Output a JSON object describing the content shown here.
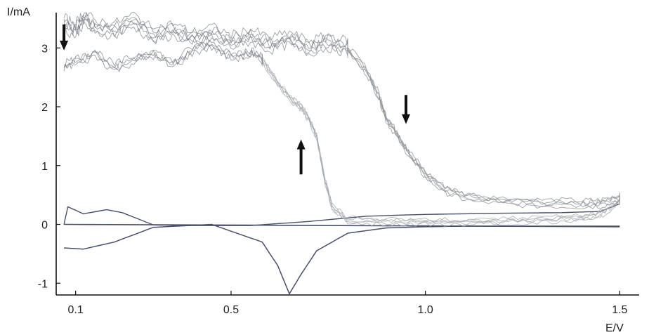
{
  "chart_data": {
    "type": "line",
    "title": "",
    "xlabel": "E/V",
    "ylabel": "I/mA",
    "xlim": [
      0.05,
      1.55
    ],
    "ylim": [
      -1.2,
      3.6
    ],
    "xticks": [
      {
        "value": 0.1,
        "label": "0.1"
      },
      {
        "value": 0.5,
        "label": "0.5"
      },
      {
        "value": 1.0,
        "label": "1.0"
      },
      {
        "value": 1.5,
        "label": "1.5"
      }
    ],
    "yticks": [
      {
        "value": -1,
        "label": "-1"
      },
      {
        "value": 0,
        "label": "0"
      },
      {
        "value": 1,
        "label": "1"
      },
      {
        "value": 2,
        "label": "2"
      },
      {
        "value": 3,
        "label": "3"
      }
    ],
    "grid": false,
    "legend": "none",
    "colors": {
      "axis": "#111111",
      "voltammogram": "#4a4f6a",
      "forward": "#8a8f94",
      "reverse": "#a3a8ad",
      "noisy": "#7b8088",
      "arrow": "#111111"
    },
    "series": [
      {
        "x": [
          0.07,
          0.12,
          0.2,
          0.3,
          0.45,
          0.58,
          0.62,
          0.65,
          0.68,
          0.72,
          0.8,
          0.9,
          1.0,
          1.1,
          1.2,
          1.3,
          1.38,
          1.45,
          1.49,
          1.5
        ],
        "y": [
          -0.4,
          -0.42,
          -0.3,
          -0.05,
          0.0,
          -0.3,
          -0.7,
          -1.18,
          -0.85,
          -0.45,
          -0.15,
          -0.06,
          -0.04,
          -0.03,
          -0.03,
          -0.03,
          -0.03,
          -0.03,
          -0.03,
          -0.03
        ]
      },
      {
        "x": [
          1.5,
          1.45,
          1.35,
          1.2,
          1.0,
          0.85,
          0.7,
          0.55,
          0.4,
          0.3,
          0.22,
          0.18,
          0.12,
          0.08,
          0.07
        ],
        "y": [
          0.35,
          0.22,
          0.2,
          0.19,
          0.17,
          0.14,
          0.05,
          -0.02,
          -0.02,
          -0.01,
          0.2,
          0.25,
          0.18,
          0.3,
          0.0
        ]
      },
      {
        "x": [
          0.07,
          1.5
        ],
        "y": [
          0.0,
          -0.04
        ]
      },
      {
        "x": [
          0.8,
          0.85,
          0.88,
          0.9,
          0.93,
          0.96,
          1.0,
          1.05,
          1.1,
          1.2,
          1.3,
          1.4,
          1.45,
          1.5
        ],
        "y": [
          3.0,
          2.6,
          2.2,
          1.8,
          1.5,
          1.2,
          0.85,
          0.6,
          0.48,
          0.4,
          0.37,
          0.36,
          0.37,
          0.45
        ]
      },
      {
        "x": [
          1.5,
          1.45,
          1.4,
          1.3,
          1.2,
          1.1,
          1.0,
          0.9,
          0.8,
          0.76,
          0.74,
          0.72,
          0.7,
          0.68,
          0.66,
          0.62,
          0.58
        ],
        "y": [
          0.4,
          0.18,
          0.12,
          0.08,
          0.06,
          0.05,
          0.05,
          0.05,
          0.08,
          0.3,
          0.8,
          1.5,
          1.8,
          2.0,
          2.1,
          2.4,
          2.8
        ]
      },
      {
        "x": [
          0.07,
          0.1,
          0.12,
          0.15,
          0.2,
          0.25,
          0.3,
          0.35,
          0.4,
          0.45,
          0.5,
          0.55,
          0.6,
          0.65,
          0.7,
          0.75,
          0.8
        ],
        "y": [
          3.4,
          3.3,
          3.5,
          3.35,
          3.3,
          3.45,
          3.2,
          3.3,
          3.15,
          3.25,
          3.1,
          3.2,
          3.05,
          3.15,
          3.0,
          3.1,
          3.0
        ]
      },
      {
        "x": [
          0.07,
          0.1,
          0.15,
          0.2,
          0.25,
          0.3,
          0.35,
          0.4,
          0.45,
          0.5,
          0.55,
          0.58
        ],
        "y": [
          2.7,
          2.75,
          2.9,
          2.65,
          2.8,
          2.9,
          2.7,
          2.95,
          3.05,
          2.85,
          2.9,
          2.8
        ]
      }
    ]
  }
}
